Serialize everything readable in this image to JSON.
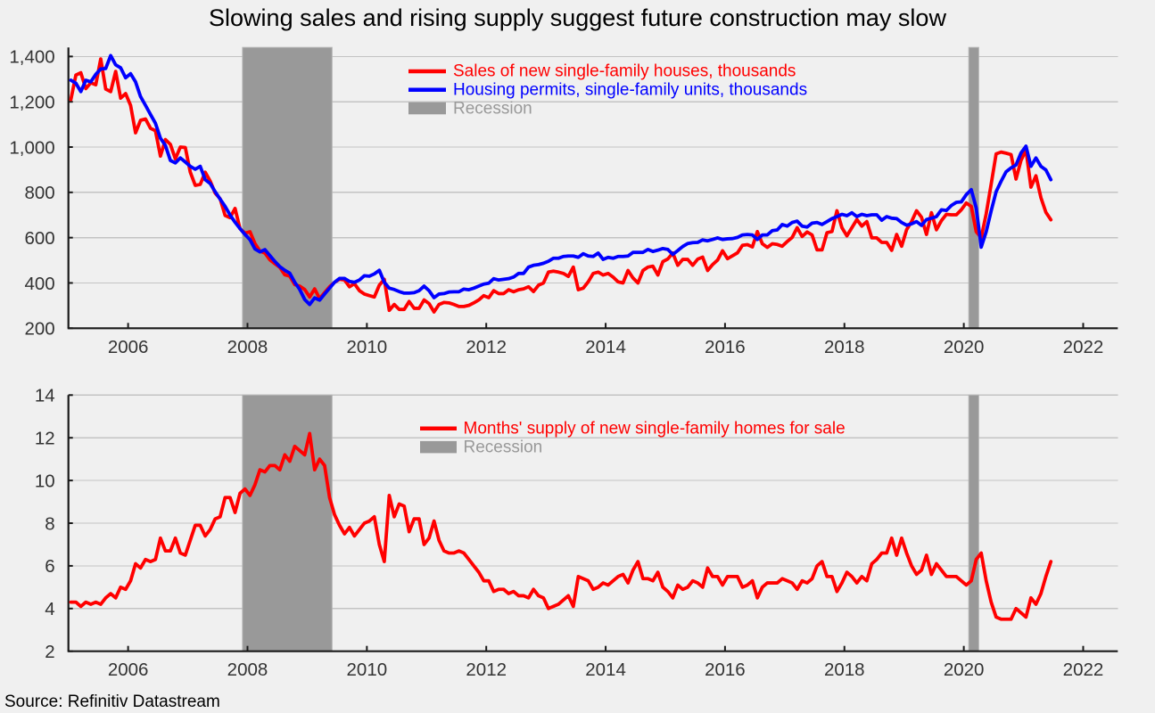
{
  "figure": {
    "source": "Source: Refinitiv Datastream",
    "background_color": "#f0f0f0"
  },
  "chart_data": [
    {
      "type": "line",
      "title": "Slowing sales and rising supply suggest future construction may slow",
      "xlabel": "",
      "ylabel": "",
      "x_start": "2005-01",
      "frequency": "monthly",
      "xlim": [
        2005.0,
        2022.58
      ],
      "ylim": [
        200,
        1440
      ],
      "xticks": [
        2006,
        2008,
        2010,
        2012,
        2014,
        2016,
        2018,
        2020,
        2022
      ],
      "xtick_labels": [
        "2006",
        "2008",
        "2010",
        "2012",
        "2014",
        "2016",
        "2018",
        "2020",
        "2022"
      ],
      "yticks": [
        200,
        400,
        600,
        800,
        1000,
        1200,
        1400
      ],
      "ytick_labels": [
        "200",
        "400",
        "600",
        "800",
        "1,000",
        "1,200",
        "1,400"
      ],
      "grid": true,
      "legend_position": "top-center",
      "legend": [
        {
          "label": "Sales of new single-family houses, thousands",
          "kind": "line",
          "color": "#ff0000"
        },
        {
          "label": "Housing permits, single-family units, thousands",
          "kind": "line",
          "color": "#0000ff"
        },
        {
          "label": "Recession",
          "kind": "patch",
          "color": "#999999"
        }
      ],
      "recession_color": "#999999",
      "recessions": [
        {
          "start": "2007-12",
          "end": "2009-06"
        },
        {
          "start": "2020-02",
          "end": "2020-04"
        }
      ],
      "series": [
        {
          "name": "Sales of new single-family houses, thousands",
          "key": "sales",
          "color": "#ff0000",
          "values": [
            1210,
            1318,
            1328,
            1258,
            1284,
            1275,
            1389,
            1256,
            1245,
            1334,
            1216,
            1236,
            1184,
            1063,
            1118,
            1124,
            1083,
            1072,
            960,
            1033,
            1012,
            948,
            1000,
            998,
            889,
            831,
            835,
            889,
            850,
            797,
            772,
            698,
            688,
            729,
            639,
            620,
            626,
            574,
            541,
            532,
            502,
            485,
            469,
            436,
            430,
            393,
            386,
            371,
            338,
            374,
            331,
            357,
            383,
            403,
            416,
            413,
            383,
            397,
            366,
            351,
            344,
            338,
            390,
            416,
            279,
            305,
            283,
            283,
            318,
            288,
            288,
            325,
            309,
            272,
            305,
            314,
            312,
            305,
            296,
            296,
            301,
            312,
            325,
            344,
            335,
            366,
            353,
            353,
            370,
            361,
            370,
            374,
            383,
            362,
            390,
            400,
            448,
            452,
            448,
            442,
            429,
            470,
            370,
            377,
            405,
            442,
            448,
            435,
            442,
            426,
            405,
            400,
            455,
            422,
            400,
            455,
            470,
            474,
            435,
            494,
            506,
            532,
            478,
            504,
            504,
            478,
            505,
            514,
            455,
            481,
            501,
            542,
            507,
            520,
            533,
            566,
            569,
            559,
            627,
            573,
            557,
            573,
            570,
            562,
            583,
            601,
            644,
            605,
            625,
            612,
            546,
            546,
            622,
            627,
            719,
            644,
            608,
            644,
            680,
            651,
            671,
            599,
            599,
            579,
            579,
            544,
            614,
            562,
            635,
            671,
            719,
            690,
            614,
            710,
            635,
            675,
            703,
            701,
            701,
            723,
            753,
            738,
            626,
            600,
            705,
            836,
            970,
            978,
            973,
            967,
            859,
            941,
            987,
            823,
            873,
            777,
            712,
            679
          ]
        },
        {
          "name": "Housing permits, single-family units, thousands",
          "key": "permits",
          "color": "#0000ff",
          "values": [
            1295,
            1282,
            1245,
            1295,
            1288,
            1321,
            1345,
            1347,
            1404,
            1363,
            1350,
            1306,
            1324,
            1288,
            1223,
            1184,
            1144,
            1105,
            1039,
            1007,
            941,
            930,
            952,
            934,
            915,
            902,
            915,
            856,
            839,
            803,
            770,
            738,
            700,
            668,
            640,
            614,
            591,
            550,
            537,
            547,
            521,
            495,
            472,
            456,
            443,
            403,
            371,
            327,
            305,
            334,
            324,
            351,
            377,
            403,
            420,
            420,
            407,
            403,
            413,
            432,
            430,
            440,
            456,
            403,
            377,
            371,
            362,
            355,
            355,
            357,
            366,
            386,
            366,
            335,
            351,
            353,
            360,
            361,
            361,
            373,
            370,
            377,
            386,
            395,
            399,
            419,
            413,
            416,
            419,
            426,
            442,
            442,
            470,
            478,
            481,
            487,
            496,
            509,
            509,
            517,
            519,
            519,
            513,
            529,
            519,
            517,
            532,
            504,
            513,
            509,
            517,
            517,
            519,
            535,
            535,
            535,
            548,
            539,
            545,
            552,
            548,
            526,
            543,
            561,
            574,
            578,
            579,
            590,
            586,
            592,
            599,
            592,
            595,
            596,
            601,
            612,
            614,
            612,
            592,
            612,
            612,
            631,
            634,
            658,
            651,
            667,
            673,
            651,
            647,
            664,
            667,
            658,
            671,
            684,
            693,
            703,
            697,
            710,
            693,
            703,
            697,
            701,
            701,
            677,
            693,
            686,
            684,
            667,
            655,
            661,
            671,
            654,
            680,
            686,
            693,
            723,
            720,
            742,
            756,
            758,
            790,
            812,
            731,
            558,
            626,
            718,
            803,
            849,
            891,
            908,
            921,
            974,
            1004,
            915,
            952,
            915,
            899,
            856
          ]
        }
      ]
    },
    {
      "type": "line",
      "title": "",
      "xlabel": "",
      "ylabel": "",
      "x_start": "2005-01",
      "frequency": "monthly",
      "xlim": [
        2005.0,
        2022.58
      ],
      "ylim": [
        2,
        14
      ],
      "xticks": [
        2006,
        2008,
        2010,
        2012,
        2014,
        2016,
        2018,
        2020,
        2022
      ],
      "xtick_labels": [
        "2006",
        "2008",
        "2010",
        "2012",
        "2014",
        "2016",
        "2018",
        "2020",
        "2022"
      ],
      "yticks": [
        2,
        4,
        6,
        8,
        10,
        12,
        14
      ],
      "ytick_labels": [
        "2",
        "4",
        "6",
        "8",
        "10",
        "12",
        "14"
      ],
      "grid": true,
      "legend_position": "top-center",
      "legend": [
        {
          "label": "Months' supply of new single-family homes for sale",
          "kind": "line",
          "color": "#ff0000"
        },
        {
          "label": "Recession",
          "kind": "patch",
          "color": "#999999"
        }
      ],
      "recession_color": "#999999",
      "recessions": [
        {
          "start": "2007-12",
          "end": "2009-06"
        },
        {
          "start": "2020-02",
          "end": "2020-04"
        }
      ],
      "series": [
        {
          "name": "Months' supply of new single-family homes for sale",
          "key": "months-supply",
          "color": "#ff0000",
          "values": [
            4.3,
            4.3,
            4.1,
            4.3,
            4.2,
            4.3,
            4.2,
            4.5,
            4.7,
            4.5,
            5.0,
            4.9,
            5.3,
            6.1,
            5.9,
            6.3,
            6.2,
            6.3,
            7.3,
            6.7,
            6.7,
            7.3,
            6.6,
            6.5,
            7.2,
            7.9,
            7.9,
            7.4,
            7.7,
            8.2,
            8.3,
            9.2,
            9.2,
            8.5,
            9.4,
            9.6,
            9.3,
            9.8,
            10.5,
            10.4,
            10.7,
            10.7,
            10.5,
            11.2,
            10.9,
            11.6,
            11.4,
            11.2,
            12.2,
            10.5,
            11.0,
            10.7,
            9.2,
            8.4,
            7.9,
            7.5,
            7.8,
            7.4,
            7.7,
            8.0,
            8.1,
            8.3,
            7.0,
            6.2,
            9.3,
            8.3,
            8.9,
            8.8,
            7.6,
            8.2,
            8.2,
            7.0,
            7.3,
            8.1,
            7.2,
            6.7,
            6.6,
            6.6,
            6.7,
            6.6,
            6.3,
            6.0,
            5.7,
            5.3,
            5.3,
            4.8,
            4.9,
            4.9,
            4.7,
            4.8,
            4.6,
            4.6,
            4.5,
            4.9,
            4.6,
            4.5,
            4.0,
            4.1,
            4.2,
            4.4,
            4.6,
            4.1,
            5.5,
            5.4,
            5.3,
            4.9,
            5.0,
            5.2,
            5.1,
            5.3,
            5.5,
            5.6,
            5.2,
            5.8,
            6.2,
            5.4,
            5.4,
            5.3,
            5.7,
            5.0,
            4.8,
            4.5,
            5.1,
            4.9,
            5.0,
            5.3,
            5.2,
            5.0,
            5.9,
            5.5,
            5.5,
            5.1,
            5.5,
            5.5,
            5.5,
            5.0,
            5.1,
            5.3,
            4.5,
            5.0,
            5.2,
            5.2,
            5.2,
            5.4,
            5.3,
            5.2,
            4.9,
            5.3,
            5.2,
            5.4,
            6.0,
            6.2,
            5.5,
            5.5,
            4.8,
            5.2,
            5.7,
            5.5,
            5.2,
            5.5,
            5.3,
            6.1,
            6.3,
            6.6,
            6.6,
            7.3,
            6.5,
            7.3,
            6.6,
            6.0,
            5.6,
            5.8,
            6.5,
            5.6,
            6.1,
            5.8,
            5.5,
            5.5,
            5.5,
            5.3,
            5.1,
            5.3,
            6.3,
            6.6,
            5.3,
            4.3,
            3.6,
            3.5,
            3.5,
            3.5,
            4.0,
            3.8,
            3.6,
            4.5,
            4.2,
            4.7,
            5.5,
            6.2
          ]
        }
      ]
    }
  ]
}
